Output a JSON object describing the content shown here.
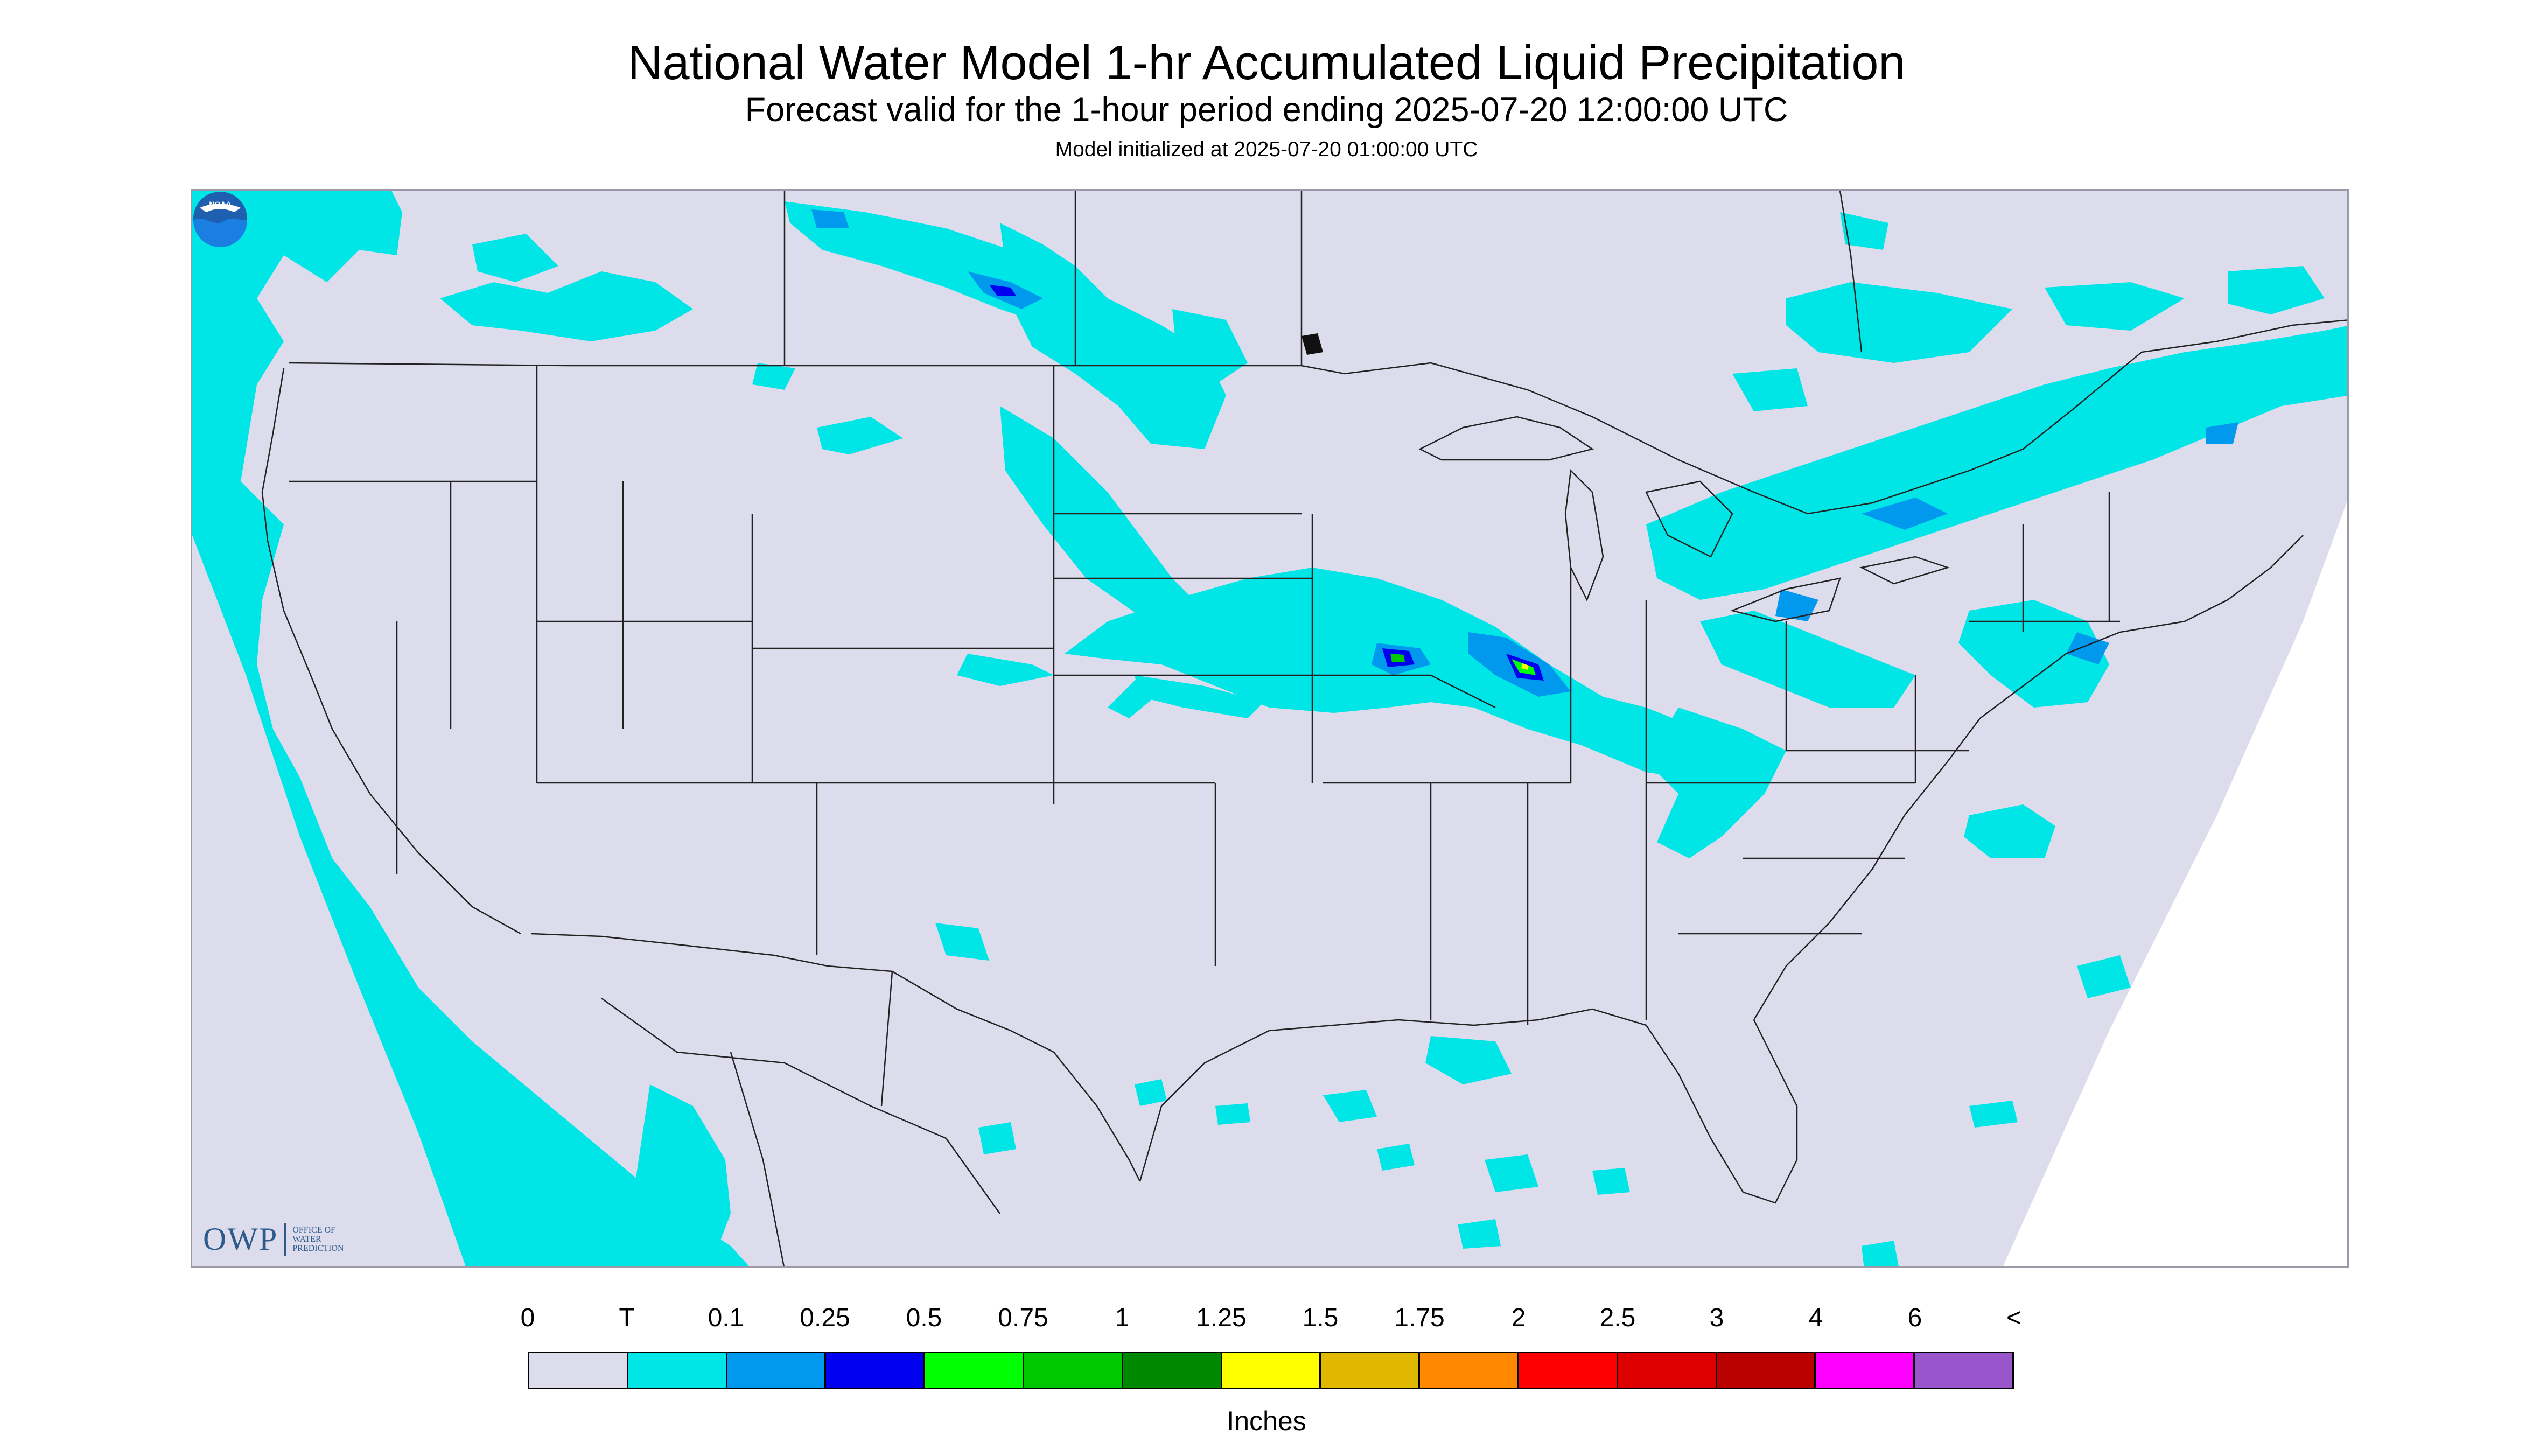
{
  "header": {
    "title": "National Water Model 1-hr Accumulated Liquid Precipitation",
    "subtitle": "Forecast valid for the 1-hour period ending 2025-07-20 12:00:00 UTC",
    "init": "Model initialized at 2025-07-20 01:00:00 UTC"
  },
  "map": {
    "region": "CONUS",
    "projection": "Lambert conformal",
    "owp_logo": {
      "mark": "OWP",
      "lines": [
        "Office of",
        "Water",
        "Prediction"
      ]
    },
    "noaa_logo_text": "NOAA"
  },
  "legend": {
    "tick_labels": [
      "0",
      "T",
      "0.1",
      "0.25",
      "0.5",
      "0.75",
      "1",
      "1.25",
      "1.5",
      "1.75",
      "2",
      "2.5",
      "3",
      "4",
      "6",
      "<"
    ],
    "colors": [
      "#dcdcec",
      "#00e5e5",
      "#0099ee",
      "#0000f0",
      "#00ff00",
      "#00c800",
      "#008800",
      "#ffff00",
      "#e0b800",
      "#ff8800",
      "#ff0000",
      "#dd0000",
      "#bb0000",
      "#ff00ff",
      "#9955cc"
    ],
    "units": "Inches"
  },
  "colors": {
    "outside_domain": "#ffffff",
    "no_precip": "#dcdcec",
    "trace": "#00e5e5",
    "border_lines": "#222222"
  }
}
